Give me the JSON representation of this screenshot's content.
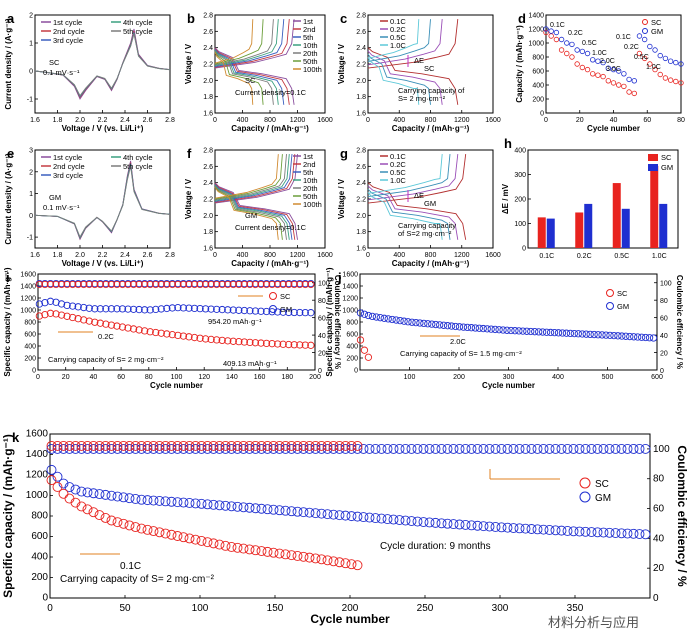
{
  "colors": {
    "sc": "#e8231f",
    "gm": "#1f2fd0",
    "arrow": "#e08020",
    "green": "#119b11",
    "purple": "#c030c0"
  },
  "cycle_colors": [
    "#8a4e9e",
    "#c43c43",
    "#3a5fbf",
    "#3aa080",
    "#7c7c7c"
  ],
  "rate_colors": [
    "#b33030",
    "#9a4fb7",
    "#3a8fb7",
    "#5cc8d8"
  ],
  "nth_colors": [
    "#8a4e9e",
    "#c43c43",
    "#3a5fbf",
    "#3aa080",
    "#7c7c7c",
    "#6b9e3a",
    "#d08a30"
  ],
  "chart_data": {
    "a": {
      "type": "line",
      "panel": "a",
      "legend": [
        "1st cycle",
        "2nd cycle",
        "3rd cycle",
        "4th cycle",
        "5th cycle"
      ],
      "note1": "SC",
      "note2": "0.1 mV·s⁻¹",
      "xlabel": "Voltage / V (vs. Li/Li⁺)",
      "ylabel": "Current density / (A·g⁻¹)",
      "xlim": [
        1.6,
        2.8
      ],
      "ylim": [
        -1.5,
        2.0
      ],
      "xticks": [
        "1.6",
        "1.8",
        "2.0",
        "2.2",
        "2.4",
        "2.6",
        "2.8"
      ],
      "yticks": [
        "-1",
        "0",
        "1",
        "2"
      ],
      "curve": [
        [
          1.6,
          0
        ],
        [
          1.7,
          -0.05
        ],
        [
          1.85,
          -0.15
        ],
        [
          1.95,
          -0.55
        ],
        [
          2.0,
          -1.0
        ],
        [
          2.05,
          -0.7
        ],
        [
          2.15,
          -0.2
        ],
        [
          2.22,
          -0.3
        ],
        [
          2.28,
          -0.7
        ],
        [
          2.33,
          -0.3
        ],
        [
          2.38,
          0.3
        ],
        [
          2.45,
          1.0
        ],
        [
          2.48,
          1.5
        ],
        [
          2.52,
          0.6
        ],
        [
          2.6,
          0.2
        ],
        [
          2.7,
          0.1
        ],
        [
          2.8,
          0.05
        ]
      ]
    },
    "b": {
      "type": "line",
      "panel": "b",
      "legend": [
        "1st",
        "2nd",
        "5th",
        "10th",
        "20th",
        "50th",
        "100th"
      ],
      "note1": "SC",
      "note2": "Current density=0.1C",
      "xlabel": "Capacity / (mAh·g⁻¹)",
      "ylabel": "Voltage / V",
      "xlim": [
        0,
        1600
      ],
      "ylim": [
        1.6,
        2.8
      ],
      "xticks": [
        "0",
        "400",
        "800",
        "1200",
        "1600"
      ],
      "yticks": [
        "1.6",
        "1.8",
        "2.0",
        "2.2",
        "2.4",
        "2.6",
        "2.8"
      ],
      "capacities": [
        1150,
        1080,
        1000,
        920,
        850,
        700,
        550
      ]
    },
    "c": {
      "type": "line",
      "panel": "c",
      "legend": [
        "0.1C",
        "0.2C",
        "0.5C",
        "1.0C"
      ],
      "note1": "SC",
      "note2": "Carrying capacity of",
      "note3": "S= 2 mg·cm⁻²",
      "delta": "ΔE",
      "xlabel": "Capacity / (mAh·g⁻¹)",
      "ylabel": "Voltage / V",
      "xlim": [
        0,
        1600
      ],
      "ylim": [
        1.6,
        2.8
      ],
      "xticks": [
        "0",
        "400",
        "800",
        "1200",
        "1600"
      ],
      "yticks": [
        "1.6",
        "1.8",
        "2.0",
        "2.2",
        "2.4",
        "2.6",
        "2.8"
      ],
      "capacities": [
        1150,
        950,
        800,
        650
      ]
    },
    "d": {
      "type": "scatter",
      "panel": "d",
      "legend": [
        "SC",
        "GM"
      ],
      "xlabel": "Cycle number",
      "ylabel": "Capacity / (mAh·g⁻¹)",
      "xlim": [
        0,
        80
      ],
      "ylim": [
        0,
        1400
      ],
      "xticks": [
        "0",
        "20",
        "40",
        "60",
        "80"
      ],
      "yticks": [
        "0",
        "200",
        "400",
        "600",
        "800",
        "1000",
        "1200",
        "1400"
      ],
      "rates": [
        "0.1C",
        "0.2C",
        "0.5C",
        "1.0C",
        "2.0C",
        "3.0C",
        "0.1C",
        "0.2C",
        "0.5C",
        "1.0C"
      ],
      "sc": [
        1150,
        1100,
        1050,
        900,
        850,
        800,
        700,
        650,
        620,
        560,
        540,
        520,
        460,
        430,
        400,
        380,
        300,
        280,
        850,
        780,
        700,
        620,
        550,
        500,
        470,
        450,
        430
      ],
      "gm": [
        1200,
        1170,
        1150,
        1050,
        1000,
        980,
        900,
        880,
        850,
        760,
        740,
        720,
        640,
        620,
        600,
        560,
        480,
        460,
        1100,
        1050,
        950,
        900,
        820,
        780,
        740,
        720,
        700
      ]
    },
    "e": {
      "type": "line",
      "panel": "e",
      "legend": [
        "1st cycle",
        "2nd cycle",
        "3rd cycle",
        "4th cycle",
        "5th cycle"
      ],
      "note1": "GM",
      "note2": "0.1 mV·s⁻¹",
      "xlabel": "Voltage / V (vs. Li/Li⁺)",
      "ylabel": "Current density / (A·g⁻¹)",
      "xlim": [
        1.6,
        2.8
      ],
      "ylim": [
        -1.5,
        3.0
      ],
      "xticks": [
        "1.6",
        "1.8",
        "2.0",
        "2.2",
        "2.4",
        "2.6",
        "2.8"
      ],
      "yticks": [
        "-1",
        "0",
        "1",
        "2",
        "3"
      ],
      "curve": [
        [
          1.6,
          0
        ],
        [
          1.8,
          -0.05
        ],
        [
          1.95,
          -0.4
        ],
        [
          2.0,
          -1.1
        ],
        [
          2.05,
          -0.6
        ],
        [
          2.15,
          -0.1
        ],
        [
          2.2,
          -0.3
        ],
        [
          2.28,
          -0.8
        ],
        [
          2.33,
          -0.2
        ],
        [
          2.38,
          0.5
        ],
        [
          2.42,
          1.8
        ],
        [
          2.45,
          2.5
        ],
        [
          2.48,
          1.2
        ],
        [
          2.55,
          0.3
        ],
        [
          2.7,
          0.1
        ],
        [
          2.8,
          0.05
        ]
      ]
    },
    "f": {
      "type": "line",
      "panel": "f",
      "legend": [
        "1st",
        "2nd",
        "5th",
        "10th",
        "20th",
        "50th",
        "100th"
      ],
      "note1": "GM",
      "note2": "Current density=0.1C",
      "xlabel": "Capacity / (mAh·g⁻¹)",
      "ylabel": "Voltage / V",
      "xlim": [
        0,
        1600
      ],
      "ylim": [
        1.6,
        2.8
      ],
      "xticks": [
        "0",
        "400",
        "800",
        "1200",
        "1600"
      ],
      "yticks": [
        "1.6",
        "1.8",
        "2.0",
        "2.2",
        "2.4",
        "2.6",
        "2.8"
      ],
      "capacities": [
        1200,
        1160,
        1120,
        1080,
        1040,
        980,
        920
      ]
    },
    "g": {
      "type": "line",
      "panel": "g",
      "legend": [
        "0.1C",
        "0.2C",
        "0.5C",
        "1.0C"
      ],
      "note1": "GM",
      "note2": "Carrying capacity",
      "note3": "of S=2 mg·cm⁻²",
      "delta": "ΔE",
      "xlabel": "Capacity / (mAh·g⁻¹)",
      "ylabel": "Voltage / V",
      "xlim": [
        0,
        1600
      ],
      "ylim": [
        1.6,
        2.8
      ],
      "xticks": [
        "0",
        "400",
        "800",
        "1200",
        "1600"
      ],
      "yticks": [
        "1.6",
        "1.8",
        "2.0",
        "2.2",
        "2.4",
        "2.6",
        "2.8"
      ],
      "capacities": [
        1250,
        1150,
        1050,
        950
      ]
    },
    "h": {
      "type": "bar",
      "panel": "h",
      "categories": [
        "0.1C",
        "0.2C",
        "0.5C",
        "1.0C"
      ],
      "series": [
        {
          "name": "SC",
          "values": [
            125,
            145,
            265,
            335
          ]
        },
        {
          "name": "GM",
          "values": [
            120,
            180,
            160,
            180
          ]
        }
      ],
      "ylabel": "ΔE / mV",
      "ylim": [
        0,
        400
      ],
      "yticks": [
        "0",
        "100",
        "200",
        "300",
        "400"
      ]
    },
    "i": {
      "type": "scatter",
      "panel": "i",
      "legend": [
        "SC",
        "GM"
      ],
      "rate": "0.2C",
      "note": "Carrying capacity of S= 2 mg·cm⁻²",
      "gm_label": "954.20 mAh·g⁻¹",
      "sc_label": "409.13 mAh·g⁻¹",
      "xlabel": "Cycle number",
      "ylabel": "Specific capacity / (mAh·g⁻¹)",
      "y2label": "Coulombic efficiency / %",
      "xlim": [
        0,
        200
      ],
      "ylim": [
        0,
        1600
      ],
      "y2lim": [
        0,
        110
      ],
      "xticks": [
        "0",
        "20",
        "40",
        "60",
        "80",
        "100",
        "120",
        "140",
        "160",
        "180",
        "200"
      ],
      "yticks": [
        "0",
        "200",
        "400",
        "600",
        "800",
        "1000",
        "1200",
        "1400",
        "1600"
      ],
      "y2ticks": [
        "0",
        "20",
        "40",
        "60",
        "80",
        "100"
      ],
      "sc": [
        [
          1,
          900
        ],
        [
          10,
          950
        ],
        [
          20,
          900
        ],
        [
          40,
          800
        ],
        [
          60,
          720
        ],
        [
          80,
          640
        ],
        [
          100,
          580
        ],
        [
          120,
          520
        ],
        [
          140,
          480
        ],
        [
          160,
          450
        ],
        [
          180,
          425
        ],
        [
          200,
          409
        ]
      ],
      "gm": [
        [
          1,
          1100
        ],
        [
          10,
          1150
        ],
        [
          20,
          1080
        ],
        [
          40,
          1020
        ],
        [
          60,
          1020
        ],
        [
          80,
          1000
        ],
        [
          100,
          1040
        ],
        [
          120,
          1020
        ],
        [
          140,
          1000
        ],
        [
          160,
          980
        ],
        [
          180,
          960
        ],
        [
          200,
          954
        ]
      ],
      "ce_sc": 98,
      "ce_gm": 99
    },
    "j": {
      "type": "scatter",
      "panel": "j",
      "legend": [
        "SC",
        "GM"
      ],
      "rate": "2.0C",
      "note": "Carrying capacity of S= 1.5 mg·cm⁻²",
      "xlabel": "Cycle number",
      "ylabel": "Specific capacity / (mAh·g⁻¹)",
      "y2label": "Coulombic efficiency / %",
      "xlim": [
        0,
        600
      ],
      "ylim": [
        0,
        1600
      ],
      "y2lim": [
        0,
        110
      ],
      "xticks": [
        "100",
        "200",
        "300",
        "400",
        "500",
        "600"
      ],
      "yticks": [
        "0",
        "200",
        "400",
        "600",
        "800",
        "1000",
        "1200",
        "1400",
        "1600"
      ],
      "y2ticks": [
        "0",
        "20",
        "40",
        "60",
        "80",
        "100"
      ],
      "gm": [
        [
          1,
          950
        ],
        [
          20,
          900
        ],
        [
          50,
          860
        ],
        [
          100,
          800
        ],
        [
          200,
          720
        ],
        [
          300,
          660
        ],
        [
          400,
          620
        ],
        [
          500,
          580
        ],
        [
          600,
          530
        ]
      ],
      "sc": [
        [
          1,
          500
        ],
        [
          5,
          450
        ],
        [
          10,
          300
        ],
        [
          15,
          220
        ],
        [
          20,
          200
        ]
      ]
    },
    "k": {
      "type": "scatter",
      "panel": "k",
      "legend": [
        "SC",
        "GM"
      ],
      "rate": "0.1C",
      "note": "Carrying capacity of S= 2 mg·cm⁻²",
      "duration": "Cycle duration: 9 months",
      "xlabel": "Cycle number",
      "ylabel": "Specific capacity / (mAh·g⁻¹)",
      "y2label": "Coulombic efficiency / %",
      "xlim": [
        0,
        400
      ],
      "ylim": [
        0,
        1600
      ],
      "y2lim": [
        0,
        110
      ],
      "xticks": [
        "0",
        "50",
        "100",
        "150",
        "200",
        "250",
        "300",
        "350"
      ],
      "yticks": [
        "0",
        "200",
        "400",
        "600",
        "800",
        "1000",
        "1200",
        "1400",
        "1600"
      ],
      "y2ticks": [
        "0",
        "20",
        "40",
        "60",
        "80",
        "100"
      ],
      "sc": [
        [
          1,
          1150
        ],
        [
          10,
          1000
        ],
        [
          20,
          900
        ],
        [
          40,
          760
        ],
        [
          60,
          680
        ],
        [
          80,
          620
        ],
        [
          100,
          560
        ],
        [
          120,
          500
        ],
        [
          150,
          440
        ],
        [
          180,
          380
        ],
        [
          205,
          320
        ]
      ],
      "gm": [
        [
          1,
          1250
        ],
        [
          10,
          1100
        ],
        [
          20,
          1040
        ],
        [
          40,
          1000
        ],
        [
          60,
          960
        ],
        [
          80,
          940
        ],
        [
          100,
          920
        ],
        [
          150,
          860
        ],
        [
          200,
          800
        ],
        [
          250,
          740
        ],
        [
          300,
          690
        ],
        [
          350,
          650
        ],
        [
          400,
          620
        ]
      ],
      "ce_sc": 102,
      "ce_gm": 100
    }
  },
  "watermark": "材料分析与应用"
}
